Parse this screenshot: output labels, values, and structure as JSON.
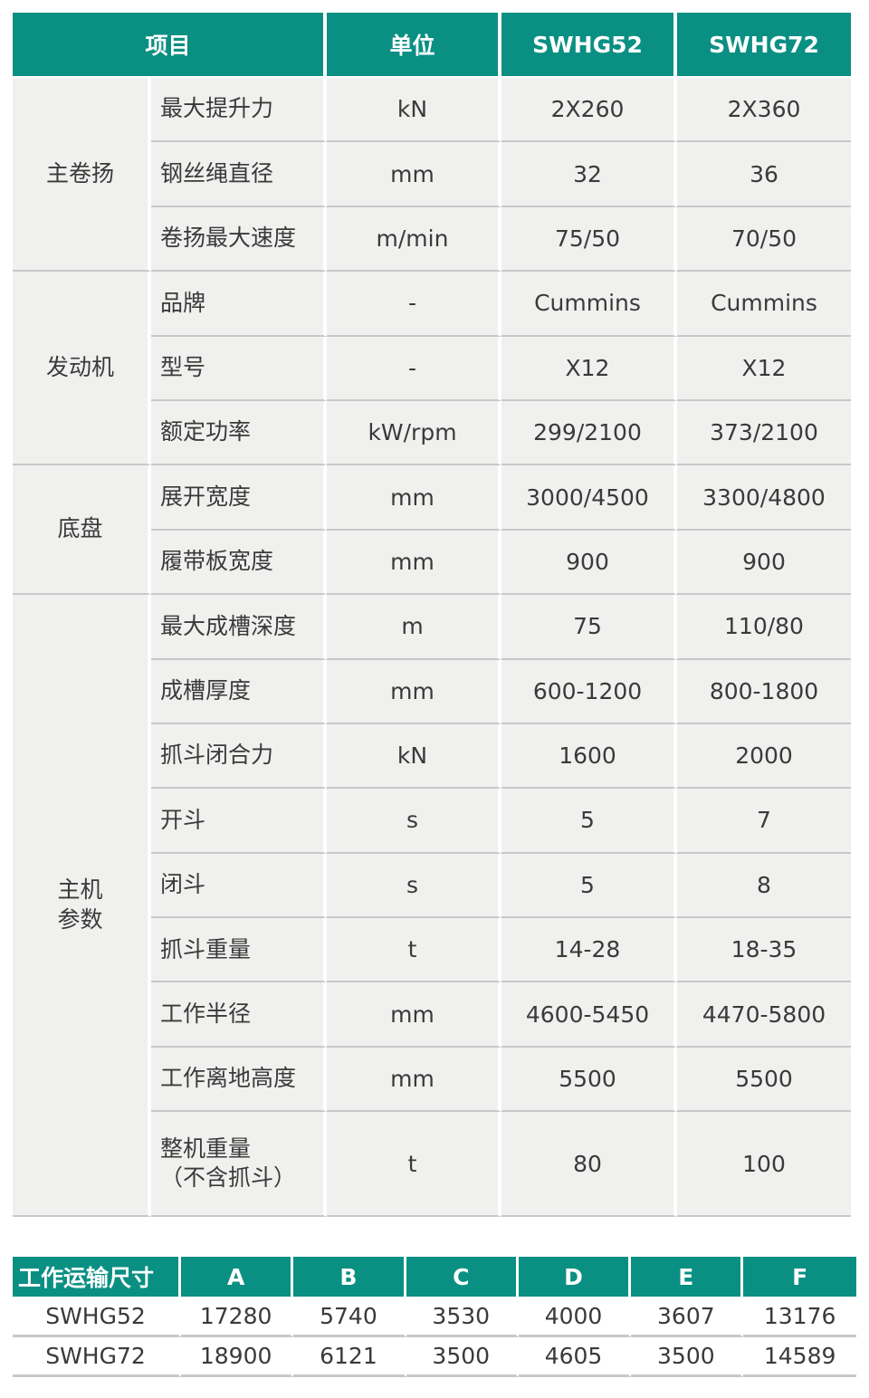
{
  "colors": {
    "header_bg": "#0a8f83",
    "cell_bg": "#f0f0ef",
    "divider": "#c6c8c9"
  },
  "spec_table": {
    "headers": [
      "项目",
      "单位",
      "SWHG52",
      "SWHG72"
    ],
    "groups": [
      {
        "name": "主卷扬",
        "rows": [
          {
            "item": "最大提升力",
            "unit": "kN",
            "swhg52": "2X260",
            "swhg72": "2X360"
          },
          {
            "item": "钢丝绳直径",
            "unit": "mm",
            "swhg52": "32",
            "swhg72": "36"
          },
          {
            "item": "卷扬最大速度",
            "unit": "m/min",
            "swhg52": "75/50",
            "swhg72": "70/50"
          }
        ]
      },
      {
        "name": "发动机",
        "rows": [
          {
            "item": "品牌",
            "unit": "-",
            "swhg52": "Cummins",
            "swhg72": "Cummins"
          },
          {
            "item": "型号",
            "unit": "-",
            "swhg52": "X12",
            "swhg72": "X12"
          },
          {
            "item": "额定功率",
            "unit": "kW/rpm",
            "swhg52": "299/2100",
            "swhg72": "373/2100"
          }
        ]
      },
      {
        "name": "底盘",
        "rows": [
          {
            "item": "展开宽度",
            "unit": "mm",
            "swhg52": "3000/4500",
            "swhg72": "3300/4800"
          },
          {
            "item": "履带板宽度",
            "unit": "mm",
            "swhg52": "900",
            "swhg72": "900"
          }
        ]
      },
      {
        "name": "主机\n参数",
        "rows": [
          {
            "item": "最大成槽深度",
            "unit": "m",
            "swhg52": "75",
            "swhg72": "110/80"
          },
          {
            "item": "成槽厚度",
            "unit": "mm",
            "swhg52": "600-1200",
            "swhg72": "800-1800"
          },
          {
            "item": "抓斗闭合力",
            "unit": "kN",
            "swhg52": "1600",
            "swhg72": "2000"
          },
          {
            "item": "开斗",
            "unit": "s",
            "swhg52": "5",
            "swhg72": "7"
          },
          {
            "item": "闭斗",
            "unit": "s",
            "swhg52": "5",
            "swhg72": "8"
          },
          {
            "item": "抓斗重量",
            "unit": "t",
            "swhg52": "14-28",
            "swhg72": "18-35"
          },
          {
            "item": "工作半径",
            "unit": "mm",
            "swhg52": "4600-5450",
            "swhg72": "4470-5800"
          },
          {
            "item": "工作离地高度",
            "unit": "mm",
            "swhg52": "5500",
            "swhg72": "5500"
          },
          {
            "item": "整机重量\n（不含抓斗）",
            "unit": "t",
            "swhg52": "80",
            "swhg72": "100",
            "tall": true
          }
        ]
      }
    ]
  },
  "dims_table": {
    "headers": [
      "工作运输尺寸",
      "A",
      "B",
      "C",
      "D",
      "E",
      "F"
    ],
    "rows": [
      [
        "SWHG52",
        "17280",
        "5740",
        "3530",
        "4000",
        "3607",
        "13176"
      ],
      [
        "SWHG72",
        "18900",
        "6121",
        "3500",
        "4605",
        "3500",
        "14589"
      ]
    ]
  }
}
